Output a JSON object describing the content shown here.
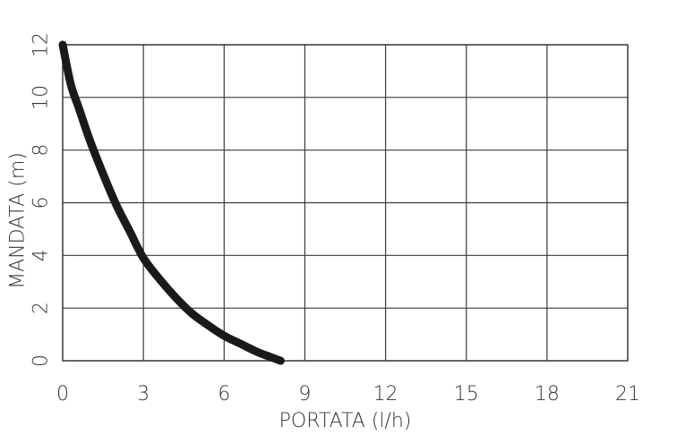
{
  "chart_data": {
    "type": "line",
    "title": "",
    "xlabel": "PORTATA (l/h)",
    "ylabel": "MANDATA (m)",
    "xlim": [
      0,
      21
    ],
    "ylim": [
      0,
      12
    ],
    "xticks": [
      0,
      3,
      6,
      9,
      12,
      15,
      18,
      21
    ],
    "yticks": [
      0,
      2,
      4,
      6,
      8,
      10,
      12
    ],
    "grid": true,
    "legend": "none",
    "series": [
      {
        "color": "#1a1a1a",
        "x": [
          0,
          0.3,
          0.6,
          1.0,
          1.5,
          2.0,
          2.5,
          3.0,
          3.6,
          4.2,
          4.8,
          5.4,
          6.0,
          6.6,
          7.2,
          7.7,
          8.1
        ],
        "y": [
          12,
          10.5,
          9.6,
          8.4,
          7.1,
          5.9,
          4.9,
          3.9,
          3.1,
          2.4,
          1.8,
          1.35,
          0.95,
          0.65,
          0.35,
          0.15,
          0
        ]
      }
    ]
  }
}
